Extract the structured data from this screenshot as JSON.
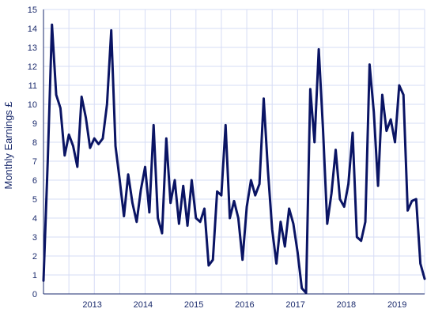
{
  "chart_data": {
    "type": "line",
    "title": "",
    "xlabel": "",
    "ylabel": "Monthly Earnings £",
    "ylim": [
      0,
      15
    ],
    "yticks": [
      0,
      1,
      2,
      3,
      4,
      5,
      6,
      7,
      8,
      9,
      10,
      11,
      12,
      13,
      14,
      15
    ],
    "year_labels": [
      "2013",
      "2014",
      "2015",
      "2016",
      "2017",
      "2018",
      "2019"
    ],
    "grid": true,
    "legend": "none",
    "line_color": "#0a1464",
    "grid_color": "#d6dcf5",
    "axis_color": "#1a2a6c",
    "series": [
      {
        "x_start": "2012-07",
        "frequency": "monthly",
        "values": [
          0.7,
          7.0,
          14.2,
          10.5,
          9.8,
          7.3,
          8.4,
          7.8,
          6.7,
          10.4,
          9.3,
          7.7,
          8.2,
          7.9,
          8.2,
          10.0,
          13.9,
          7.8,
          6.0,
          4.1,
          6.3,
          4.8,
          3.8,
          5.5,
          6.7,
          4.3,
          8.9,
          4.0,
          3.2,
          8.2,
          4.8,
          6.0,
          3.7,
          5.7,
          3.6,
          6.0,
          4.0,
          3.8,
          4.5,
          1.5,
          1.8,
          5.4,
          5.2,
          8.9,
          4.0,
          4.9,
          4.0,
          1.8,
          4.6,
          6.0,
          5.2,
          5.8,
          10.3,
          6.5,
          3.4,
          1.6,
          3.8,
          2.5,
          4.5,
          3.7,
          2.2,
          0.3,
          0.05,
          10.8,
          8.0,
          12.9,
          8.7,
          3.7,
          5.3,
          7.6,
          5.0,
          4.6,
          5.8,
          8.5,
          3.0,
          2.8,
          3.8,
          12.1,
          9.6,
          5.7,
          10.5,
          8.6,
          9.2,
          8.0,
          11.0,
          10.5,
          4.4,
          4.9,
          5.0,
          1.6,
          0.8
        ]
      }
    ]
  }
}
